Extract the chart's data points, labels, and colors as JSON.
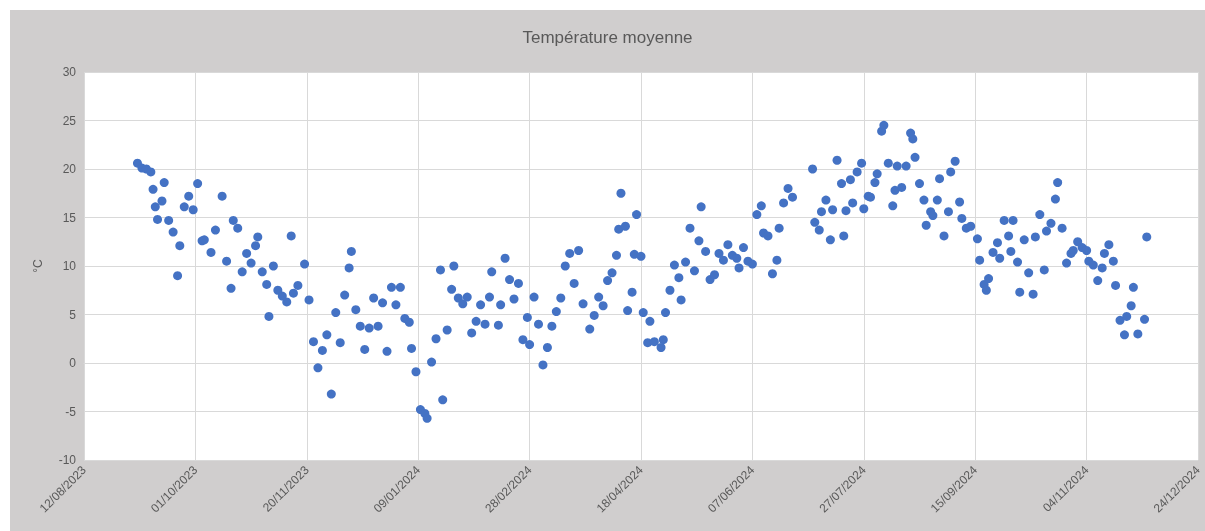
{
  "chart_data": {
    "type": "scatter",
    "title": "Température moyenne",
    "ylabel": "°C",
    "xlim": [
      "2023-08-12",
      "2024-12-24"
    ],
    "xticks": [
      {
        "value": "2023-08-12",
        "label": "12/08/2023"
      },
      {
        "value": "2023-10-01",
        "label": "01/10/2023"
      },
      {
        "value": "2023-11-20",
        "label": "20/11/2023"
      },
      {
        "value": "2024-01-09",
        "label": "09/01/2024"
      },
      {
        "value": "2024-02-28",
        "label": "28/02/2024"
      },
      {
        "value": "2024-04-18",
        "label": "18/04/2024"
      },
      {
        "value": "2024-06-07",
        "label": "07/06/2024"
      },
      {
        "value": "2024-07-27",
        "label": "27/07/2024"
      },
      {
        "value": "2024-09-15",
        "label": "15/09/2024"
      },
      {
        "value": "2024-11-04",
        "label": "04/11/2024"
      },
      {
        "value": "2024-12-24",
        "label": "24/12/2024"
      }
    ],
    "ylim": [
      -10,
      30
    ],
    "yticks": [
      -10,
      -5,
      0,
      5,
      10,
      15,
      20,
      25,
      30
    ],
    "grid": true,
    "marker": "circle",
    "color": "#4472c4",
    "x": [
      "2023-09-05",
      "2023-09-07",
      "2023-09-09",
      "2023-09-11",
      "2023-09-12",
      "2023-09-13",
      "2023-09-14",
      "2023-09-16",
      "2023-09-17",
      "2023-09-19",
      "2023-09-21",
      "2023-09-23",
      "2023-09-24",
      "2023-09-26",
      "2023-09-28",
      "2023-09-30",
      "2023-10-02",
      "2023-10-04",
      "2023-10-05",
      "2023-10-08",
      "2023-10-10",
      "2023-10-13",
      "2023-10-15",
      "2023-10-17",
      "2023-10-18",
      "2023-10-20",
      "2023-10-22",
      "2023-10-24",
      "2023-10-26",
      "2023-10-28",
      "2023-10-29",
      "2023-10-31",
      "2023-11-02",
      "2023-11-03",
      "2023-11-05",
      "2023-11-07",
      "2023-11-09",
      "2023-11-11",
      "2023-11-13",
      "2023-11-14",
      "2023-11-16",
      "2023-11-19",
      "2023-11-21",
      "2023-11-23",
      "2023-11-25",
      "2023-11-27",
      "2023-11-29",
      "2023-12-01",
      "2023-12-03",
      "2023-12-05",
      "2023-12-07",
      "2023-12-09",
      "2023-12-10",
      "2023-12-12",
      "2023-12-14",
      "2023-12-16",
      "2023-12-18",
      "2023-12-20",
      "2023-12-22",
      "2023-12-24",
      "2023-12-26",
      "2023-12-28",
      "2023-12-30",
      "2024-01-01",
      "2024-01-03",
      "2024-01-05",
      "2024-01-06",
      "2024-01-08",
      "2024-01-10",
      "2024-01-12",
      "2024-01-13",
      "2024-01-15",
      "2024-01-17",
      "2024-01-19",
      "2024-01-20",
      "2024-01-22",
      "2024-01-24",
      "2024-01-25",
      "2024-01-27",
      "2024-01-29",
      "2024-01-31",
      "2024-02-02",
      "2024-02-04",
      "2024-02-06",
      "2024-02-08",
      "2024-02-10",
      "2024-02-11",
      "2024-02-14",
      "2024-02-15",
      "2024-02-17",
      "2024-02-19",
      "2024-02-21",
      "2024-02-23",
      "2024-02-25",
      "2024-02-27",
      "2024-02-28",
      "2024-03-01",
      "2024-03-03",
      "2024-03-05",
      "2024-03-07",
      "2024-03-09",
      "2024-03-11",
      "2024-03-13",
      "2024-03-15",
      "2024-03-17",
      "2024-03-19",
      "2024-03-21",
      "2024-03-23",
      "2024-03-26",
      "2024-03-28",
      "2024-03-30",
      "2024-04-01",
      "2024-04-03",
      "2024-04-05",
      "2024-04-07",
      "2024-04-08",
      "2024-04-09",
      "2024-04-11",
      "2024-04-12",
      "2024-04-14",
      "2024-04-15",
      "2024-04-16",
      "2024-04-18",
      "2024-04-19",
      "2024-04-21",
      "2024-04-22",
      "2024-04-24",
      "2024-04-27",
      "2024-04-28",
      "2024-04-29",
      "2024-05-01",
      "2024-05-03",
      "2024-05-05",
      "2024-05-06",
      "2024-05-08",
      "2024-05-10",
      "2024-05-12",
      "2024-05-14",
      "2024-05-15",
      "2024-05-17",
      "2024-05-19",
      "2024-05-21",
      "2024-05-23",
      "2024-05-25",
      "2024-05-27",
      "2024-05-29",
      "2024-05-31",
      "2024-06-01",
      "2024-06-03",
      "2024-06-05",
      "2024-06-07",
      "2024-06-09",
      "2024-06-11",
      "2024-06-12",
      "2024-06-14",
      "2024-06-16",
      "2024-06-18",
      "2024-06-19",
      "2024-06-21",
      "2024-06-23",
      "2024-06-25",
      "2024-07-04",
      "2024-07-05",
      "2024-07-07",
      "2024-07-08",
      "2024-07-10",
      "2024-07-12",
      "2024-07-13",
      "2024-07-15",
      "2024-07-17",
      "2024-07-18",
      "2024-07-19",
      "2024-07-21",
      "2024-07-22",
      "2024-07-24",
      "2024-07-26",
      "2024-07-27",
      "2024-07-29",
      "2024-07-30",
      "2024-08-01",
      "2024-08-02",
      "2024-08-04",
      "2024-08-05",
      "2024-08-07",
      "2024-08-09",
      "2024-08-10",
      "2024-08-11",
      "2024-08-13",
      "2024-08-15",
      "2024-08-17",
      "2024-08-18",
      "2024-08-19",
      "2024-08-21",
      "2024-08-23",
      "2024-08-24",
      "2024-08-26",
      "2024-08-27",
      "2024-08-29",
      "2024-08-30",
      "2024-09-01",
      "2024-09-03",
      "2024-09-04",
      "2024-09-06",
      "2024-09-08",
      "2024-09-09",
      "2024-09-11",
      "2024-09-13",
      "2024-09-16",
      "2024-09-17",
      "2024-09-19",
      "2024-09-20",
      "2024-09-21",
      "2024-09-23",
      "2024-09-25",
      "2024-09-26",
      "2024-09-28",
      "2024-09-30",
      "2024-10-01",
      "2024-10-02",
      "2024-10-04",
      "2024-10-05",
      "2024-10-07",
      "2024-10-09",
      "2024-10-11",
      "2024-10-12",
      "2024-10-14",
      "2024-10-16",
      "2024-10-17",
      "2024-10-19",
      "2024-10-21",
      "2024-10-22",
      "2024-10-24",
      "2024-10-26",
      "2024-10-28",
      "2024-10-29",
      "2024-10-31",
      "2024-11-02",
      "2024-11-04",
      "2024-11-05",
      "2024-11-07",
      "2024-11-09",
      "2024-11-11",
      "2024-11-12",
      "2024-11-14",
      "2024-11-16",
      "2024-11-17",
      "2024-11-19",
      "2024-11-21",
      "2024-11-22",
      "2024-11-24",
      "2024-11-25",
      "2024-11-27",
      "2024-11-30",
      "2024-12-01"
    ],
    "values": [
      20.6,
      20.1,
      20.0,
      19.7,
      17.9,
      16.1,
      14.8,
      16.7,
      18.6,
      14.7,
      13.5,
      9.0,
      12.1,
      16.1,
      17.2,
      15.8,
      18.5,
      12.6,
      12.7,
      11.4,
      13.7,
      17.2,
      10.5,
      7.7,
      14.7,
      13.9,
      9.4,
      11.3,
      10.3,
      12.1,
      13.0,
      9.4,
      8.1,
      4.8,
      10.0,
      7.5,
      6.9,
      6.3,
      13.1,
      7.2,
      8.0,
      10.2,
      6.5,
      2.2,
      -0.5,
      1.3,
      2.9,
      -3.2,
      5.2,
      2.1,
      7.0,
      9.8,
      11.5,
      5.5,
      3.8,
      1.4,
      3.6,
      6.7,
      3.8,
      6.2,
      1.2,
      7.8,
      6.0,
      7.8,
      4.6,
      4.2,
      1.5,
      -0.9,
      -4.8,
      -5.2,
      -5.7,
      0.1,
      2.5,
      9.6,
      -3.8,
      3.4,
      7.6,
      10.0,
      6.7,
      6.1,
      6.8,
      3.1,
      4.3,
      6.0,
      4.0,
      6.8,
      9.4,
      3.9,
      6.0,
      10.8,
      8.6,
      6.6,
      8.2,
      2.4,
      4.7,
      1.9,
      6.8,
      4.0,
      -0.2,
      1.6,
      3.8,
      5.3,
      6.7,
      10.0,
      11.3,
      8.2,
      11.6,
      6.1,
      3.5,
      4.9,
      6.8,
      5.9,
      8.5,
      9.3,
      11.1,
      13.8,
      17.5,
      14.1,
      5.4,
      7.3,
      11.2,
      15.3,
      11.0,
      5.2,
      2.1,
      4.3,
      2.2,
      1.6,
      2.4,
      5.2,
      7.5,
      10.1,
      8.8,
      6.5,
      10.4,
      13.9,
      9.5,
      12.6,
      16.1,
      11.5,
      8.6,
      9.1,
      11.3,
      10.6,
      12.2,
      11.1,
      10.8,
      9.8,
      11.9,
      10.5,
      10.2,
      15.3,
      16.2,
      13.4,
      13.1,
      9.2,
      10.6,
      13.9,
      16.5,
      18.0,
      17.1,
      20.0,
      14.5,
      13.7,
      15.6,
      16.8,
      12.7,
      15.8,
      20.9,
      18.5,
      13.1,
      15.7,
      18.9,
      16.5,
      19.7,
      20.6,
      15.9,
      17.2,
      17.1,
      18.6,
      19.5,
      23.9,
      24.5,
      20.6,
      16.2,
      17.8,
      20.3,
      18.1,
      20.3,
      23.7,
      23.1,
      21.2,
      18.5,
      16.8,
      14.2,
      15.6,
      15.2,
      16.8,
      19.0,
      13.1,
      15.6,
      19.7,
      20.8,
      16.6,
      14.9,
      13.9,
      14.1,
      12.8,
      10.6,
      8.1,
      7.5,
      8.7,
      11.4,
      12.4,
      10.8,
      14.7,
      13.1,
      11.5,
      14.7,
      10.4,
      7.3,
      12.7,
      9.3,
      7.1,
      13.0,
      15.3,
      9.6,
      13.6,
      14.4,
      16.9,
      18.6,
      13.9,
      10.3,
      11.3,
      11.6,
      12.5,
      11.9,
      11.6,
      10.5,
      10.1,
      8.5,
      9.8,
      11.3,
      12.2,
      10.5,
      8.0,
      4.4,
      2.9,
      4.8,
      5.9,
      7.8,
      3.0,
      4.5,
      13.0
    ]
  }
}
